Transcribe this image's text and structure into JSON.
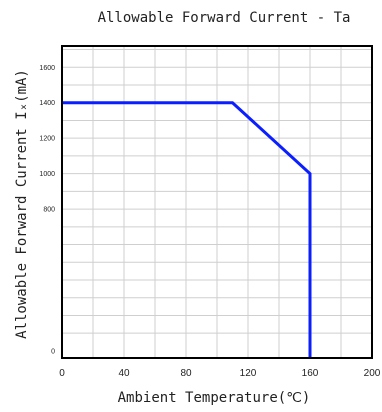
{
  "chart_data": {
    "type": "line",
    "title": "Allowable Forward Current - Ta",
    "xlabel": "Ambient Temperature(℃)",
    "ylabel": "Allowable Forward Current Iₓ(mA)",
    "xlim": [
      0,
      200
    ],
    "ylim": [
      -40,
      1720
    ],
    "x_ticks": [
      0,
      40,
      80,
      120,
      160,
      200
    ],
    "x_tick_labels": [
      "0",
      "40",
      "80",
      "120",
      "160",
      "200"
    ],
    "y_ticks": [
      0,
      800,
      1000,
      1200,
      1400,
      1600
    ],
    "y_tick_labels": [
      "0",
      "800",
      "1000",
      "1200",
      "1400",
      "1600"
    ],
    "grid": true,
    "line_color": "#0a1eff",
    "series": [
      {
        "x": [
          0,
          110,
          160,
          160
        ],
        "y": [
          1400,
          1400,
          1000,
          -40
        ]
      }
    ]
  }
}
